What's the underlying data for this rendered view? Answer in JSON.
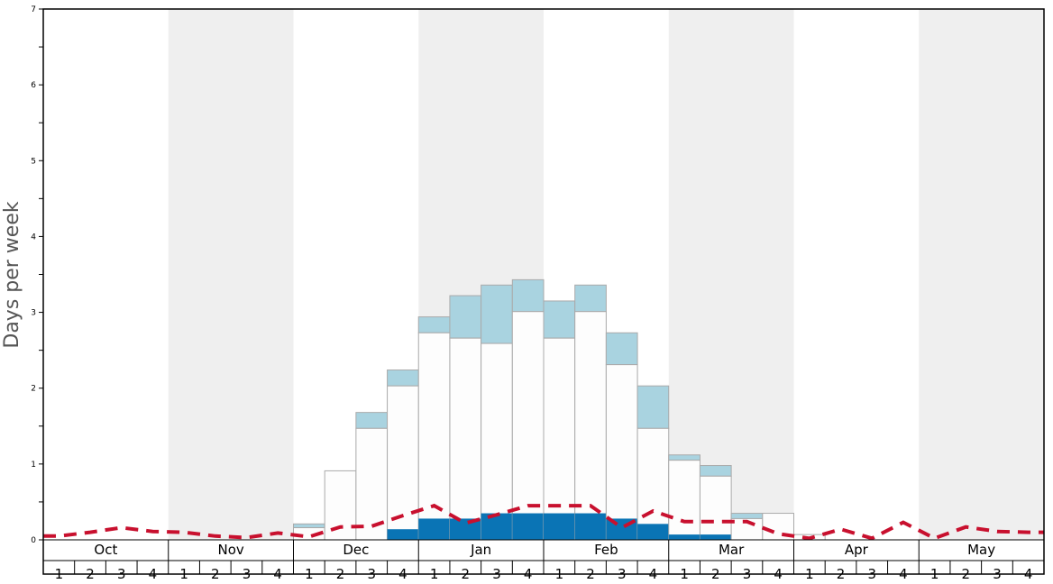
{
  "chart_data": {
    "type": "bar",
    "ylabel": "Days per week",
    "ylim": [
      0,
      7
    ],
    "ytick_labels": [
      "0",
      "1",
      "2",
      "3",
      "4",
      "5",
      "6",
      "7"
    ],
    "months": [
      "Oct",
      "Nov",
      "Dec",
      "Jan",
      "Feb",
      "Mar",
      "Apr",
      "May"
    ],
    "week_labels": [
      "1",
      "2",
      "3",
      "4"
    ],
    "shaded_months": [
      "Nov",
      "Jan",
      "Mar",
      "May"
    ],
    "colors": {
      "dark_bar": "#0a74b5",
      "light_bar": "#a9d3e0",
      "white_bar": "#fdfdfd",
      "bar_border": "#aaaaaa",
      "dashed_line": "#c8102e",
      "shade": "#efefef"
    },
    "series": [
      {
        "name": "",
        "role": "white stack top",
        "values": [
          0,
          0,
          0,
          0,
          0,
          0,
          0,
          0,
          0.16,
          0.91,
          1.47,
          2.03,
          2.73,
          2.66,
          2.59,
          3.01,
          2.66,
          3.01,
          2.31,
          1.47,
          1.05,
          0.84,
          0.28,
          0.35,
          0.07,
          0,
          0,
          0,
          0,
          0,
          0,
          0
        ]
      },
      {
        "name": "",
        "role": "light blue stack top",
        "values": [
          0,
          0,
          0,
          0,
          0,
          0,
          0,
          0,
          0.21,
          0.91,
          1.68,
          2.24,
          2.94,
          3.22,
          3.36,
          3.43,
          3.15,
          3.36,
          2.73,
          2.03,
          1.12,
          0.98,
          0.35,
          0.35,
          0.07,
          0,
          0,
          0,
          0,
          0,
          0,
          0
        ]
      },
      {
        "name": "",
        "role": "dark blue base",
        "values": [
          0,
          0,
          0,
          0,
          0,
          0,
          0,
          0,
          0,
          0,
          0,
          0.14,
          0.28,
          0.28,
          0.35,
          0.35,
          0.35,
          0.35,
          0.28,
          0.21,
          0.07,
          0.07,
          0,
          0,
          0,
          0,
          0,
          0,
          0,
          0,
          0,
          0
        ]
      },
      {
        "name": "",
        "role": "dashed line",
        "values": [
          0.05,
          0.1,
          0.16,
          0.11,
          0.1,
          0.05,
          0.03,
          0.09,
          0.04,
          0.17,
          0.18,
          0.32,
          0.45,
          0.22,
          0.33,
          0.45,
          0.45,
          0.45,
          0.16,
          0.38,
          0.24,
          0.24,
          0.24,
          0.08,
          0.02,
          0.14,
          0.02,
          0.23,
          0.02,
          0.17,
          0.11,
          0.1
        ]
      }
    ]
  }
}
